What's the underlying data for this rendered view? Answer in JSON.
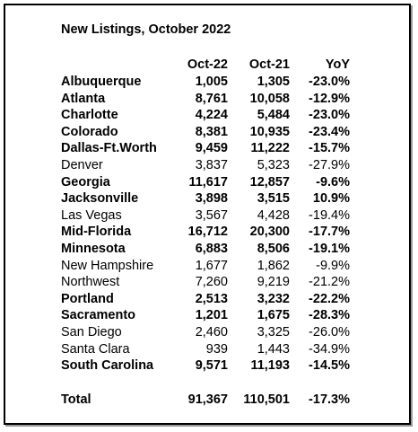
{
  "table": {
    "title": "New Listings, October 2022",
    "header": [
      "Oct-22",
      "Oct-21",
      "YoY"
    ],
    "rows": [
      {
        "cells": [
          "Albuquerque",
          "1,005",
          "1,305",
          "-23.0%"
        ],
        "bold": true
      },
      {
        "cells": [
          "Atlanta",
          "8,761",
          "10,058",
          "-12.9%"
        ],
        "bold": true
      },
      {
        "cells": [
          "Charlotte",
          "4,224",
          "5,484",
          "-23.0%"
        ],
        "bold": true
      },
      {
        "cells": [
          "Colorado",
          "8,381",
          "10,935",
          "-23.4%"
        ],
        "bold": true
      },
      {
        "cells": [
          "Dallas-Ft.Worth",
          "9,459",
          "11,222",
          "-15.7%"
        ],
        "bold": true
      },
      {
        "cells": [
          "Denver",
          "3,837",
          "5,323",
          "-27.9%"
        ],
        "bold": false
      },
      {
        "cells": [
          "Georgia",
          "11,617",
          "12,857",
          "-9.6%"
        ],
        "bold": true
      },
      {
        "cells": [
          "Jacksonville",
          "3,898",
          "3,515",
          "10.9%"
        ],
        "bold": true
      },
      {
        "cells": [
          "Las Vegas",
          "3,567",
          "4,428",
          "-19.4%"
        ],
        "bold": false
      },
      {
        "cells": [
          "Mid-Florida",
          "16,712",
          "20,300",
          "-17.7%"
        ],
        "bold": true
      },
      {
        "cells": [
          "Minnesota",
          "6,883",
          "8,506",
          "-19.1%"
        ],
        "bold": true
      },
      {
        "cells": [
          "New Hampshire",
          "1,677",
          "1,862",
          "-9.9%"
        ],
        "bold": false
      },
      {
        "cells": [
          "Northwest",
          "7,260",
          "9,219",
          "-21.2%"
        ],
        "bold": false
      },
      {
        "cells": [
          "Portland",
          "2,513",
          "3,232",
          "-22.2%"
        ],
        "bold": true
      },
      {
        "cells": [
          "Sacramento",
          "1,201",
          "1,675",
          "-28.3%"
        ],
        "bold": true
      },
      {
        "cells": [
          "San Diego",
          "2,460",
          "3,325",
          "-26.0%"
        ],
        "bold": false
      },
      {
        "cells": [
          "Santa Clara",
          "939",
          "1,443",
          "-34.9%"
        ],
        "bold": false
      },
      {
        "cells": [
          "South Carolina",
          "9,571",
          "11,193",
          "-14.5%"
        ],
        "bold": true
      }
    ],
    "total": {
      "cells": [
        "Total",
        "91,367",
        "110,501",
        "-17.3%"
      ],
      "bold": true
    }
  }
}
